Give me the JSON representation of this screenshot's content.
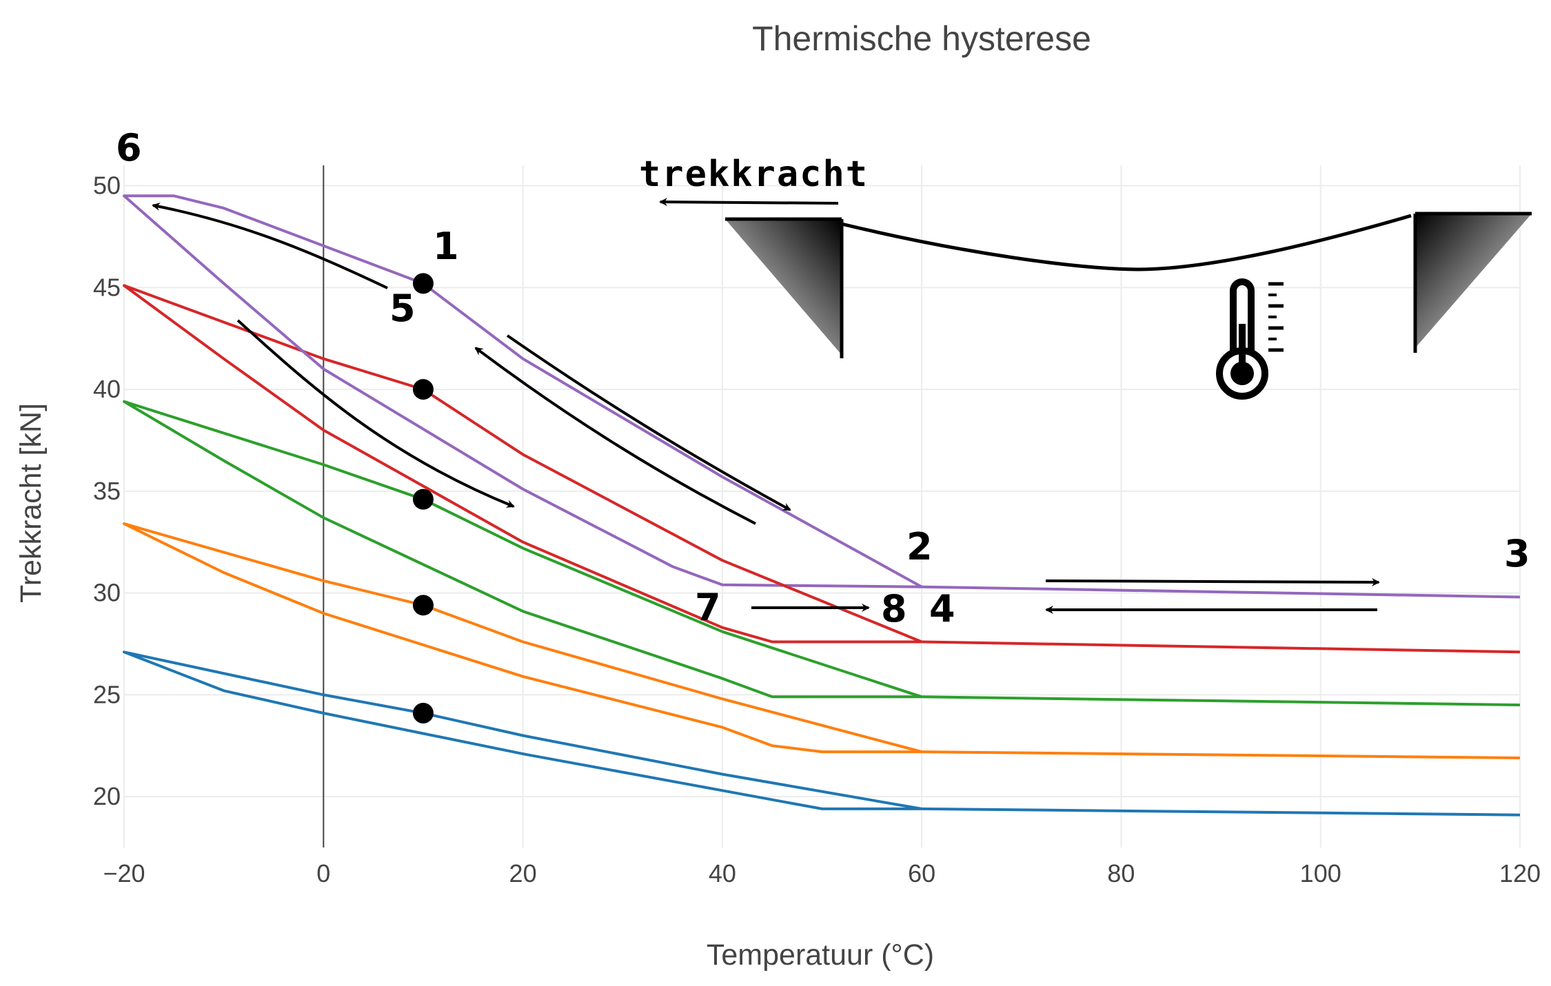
{
  "chart_data": {
    "type": "line",
    "title": "Thermische hysterese",
    "xlabel": "Temperatuur (°C)",
    "ylabel": "Trekkracht [kN]",
    "xlim": [
      -20,
      120
    ],
    "ylim": [
      17.5,
      51
    ],
    "xticks": [
      -20,
      0,
      20,
      40,
      60,
      80,
      100,
      120
    ],
    "xtick_labels": [
      "−20",
      "0",
      "20",
      "40",
      "60",
      "80",
      "100",
      "120"
    ],
    "yticks": [
      20,
      25,
      30,
      35,
      40,
      45,
      50
    ],
    "ytick_labels": [
      "20",
      "25",
      "30",
      "35",
      "40",
      "45",
      "50"
    ],
    "grid": true,
    "legend": "none",
    "series": [
      {
        "color": "#1f77b4",
        "x": [
          10,
          0,
          -20,
          -10,
          0,
          20,
          40,
          50,
          60,
          120
        ],
        "y": [
          24.1,
          25.0,
          27.1,
          25.2,
          24.1,
          22.1,
          20.3,
          19.4,
          19.4,
          19.1
        ]
      },
      {
        "color": "#ff7f0e",
        "x": [
          10,
          0,
          -20,
          -10,
          0,
          20,
          40,
          45,
          50,
          60,
          120
        ],
        "y": [
          29.4,
          30.6,
          33.4,
          31.0,
          29.0,
          25.9,
          23.4,
          22.5,
          22.2,
          22.2,
          21.9
        ]
      },
      {
        "color": "#2ca02c",
        "x": [
          10,
          0,
          -20,
          -10,
          0,
          20,
          40,
          45,
          60,
          120
        ],
        "y": [
          34.6,
          36.3,
          39.4,
          36.5,
          33.7,
          29.1,
          25.8,
          24.9,
          24.9,
          24.5
        ]
      },
      {
        "color": "#d62728",
        "x": [
          10,
          0,
          -20,
          -10,
          0,
          20,
          40,
          45,
          60,
          120
        ],
        "y": [
          40.0,
          41.5,
          45.1,
          41.5,
          38.0,
          32.5,
          28.3,
          27.6,
          27.6,
          27.1
        ]
      },
      {
        "color": "#9467bd",
        "x": [
          10,
          -10,
          -15,
          -20,
          -10,
          0,
          20,
          35,
          40,
          60,
          120
        ],
        "y": [
          45.2,
          48.9,
          49.5,
          49.5,
          45.2,
          41.0,
          35.1,
          31.3,
          30.4,
          30.3,
          29.8
        ]
      },
      {
        "color": "#9467bd",
        "x": [
          10,
          20,
          40,
          60
        ],
        "y": [
          45.2,
          41.5,
          35.7,
          30.3
        ]
      },
      {
        "color": "#d62728",
        "x": [
          10,
          20,
          40,
          60
        ],
        "y": [
          40.0,
          36.8,
          31.6,
          27.6
        ]
      },
      {
        "color": "#2ca02c",
        "x": [
          10,
          20,
          40,
          60
        ],
        "y": [
          34.6,
          32.2,
          28.1,
          24.9
        ]
      },
      {
        "color": "#ff7f0e",
        "x": [
          10,
          20,
          40,
          60
        ],
        "y": [
          29.4,
          27.6,
          24.8,
          22.2
        ]
      },
      {
        "color": "#1f77b4",
        "x": [
          10,
          20,
          40,
          60
        ],
        "y": [
          24.1,
          23.0,
          21.1,
          19.4
        ]
      }
    ],
    "points": {
      "x": [
        10,
        10,
        10,
        10,
        10
      ],
      "y": [
        45.2,
        40.0,
        34.6,
        29.4,
        24.1
      ],
      "color": "#000000"
    },
    "annotations": [
      "1",
      "2",
      "3",
      "4",
      "5",
      "6",
      "7",
      "8"
    ],
    "inset_label": "trekkracht"
  }
}
